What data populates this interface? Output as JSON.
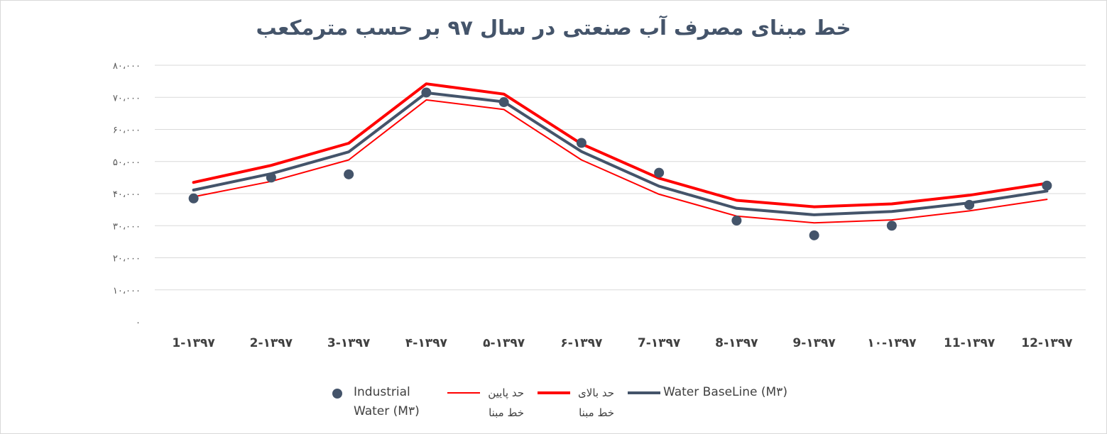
{
  "chart_data": {
    "type": "line",
    "title": "خط مبنای مصرف آب صنعتی در سال ۹۷ بر حسب مترمکعب",
    "categories": [
      "1-۱۳۹۷",
      "2-۱۳۹۷",
      "3-۱۳۹۷",
      "۴-۱۳۹۷",
      "۵-۱۳۹۷",
      "۶-۱۳۹۷",
      "7-۱۳۹۷",
      "8-۱۳۹۷",
      "9-۱۳۹۷",
      "۱۰-۱۳۹۷",
      "11-۱۳۹۷",
      "12-۱۳۹۷"
    ],
    "y_ticks": [
      "۰",
      "۱۰،۰۰۰",
      "۲۰،۰۰۰",
      "۳۰،۰۰۰",
      "۴۰،۰۰۰",
      "۵۰،۰۰۰",
      "۶۰،۰۰۰",
      "۷۰،۰۰۰",
      "۸۰،۰۰۰"
    ],
    "ylim": [
      0,
      80000
    ],
    "grid": true,
    "legend_position": "bottom",
    "series": [
      {
        "name": "Industrial Water (M۳)",
        "kind": "scatter",
        "color": "#44546a",
        "values": [
          38500,
          45000,
          46000,
          71500,
          68500,
          55800,
          46500,
          31600,
          27000,
          30000,
          36500,
          42500
        ]
      },
      {
        "name": "حد پایین خط مبنا",
        "kind": "line",
        "color": "#ff0000",
        "width": 2,
        "values": [
          39000,
          43800,
          50500,
          69200,
          66200,
          50500,
          39800,
          33000,
          30900,
          31800,
          34600,
          38200
        ]
      },
      {
        "name": "حد بالای خط مبنا",
        "kind": "line",
        "color": "#ff0000",
        "width": 4,
        "values": [
          43500,
          48800,
          55700,
          74200,
          71000,
          55500,
          44800,
          37900,
          35900,
          36800,
          39500,
          43200
        ]
      },
      {
        "name": "Water BaseLine (M۳)",
        "kind": "line",
        "color": "#44546a",
        "width": 4,
        "values": [
          41100,
          46200,
          53000,
          71400,
          68600,
          53100,
          42300,
          35400,
          33400,
          34400,
          37100,
          40800
        ]
      }
    ]
  },
  "legend": {
    "industrial": "Industrial Water (M۳)",
    "lower": "حد پایین خط مبنا",
    "upper": "حد بالای خط مبنا",
    "baseline": "Water BaseLine (M۳)"
  }
}
